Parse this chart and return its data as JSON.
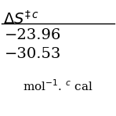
{
  "header": "$\\Delta S^{\\ddagger\\, c}$",
  "row1": "−23.96",
  "row2": "−30.53",
  "footer_left": "mol",
  "footer_sup": "$^{-1}$",
  "footer_dot": ".",
  "footer_c": " $^{c}$",
  "footer_cal": " cal",
  "background_color": "#ffffff",
  "text_color": "#000000",
  "font_size_header": 14,
  "font_size_data": 14,
  "font_size_footer": 11
}
